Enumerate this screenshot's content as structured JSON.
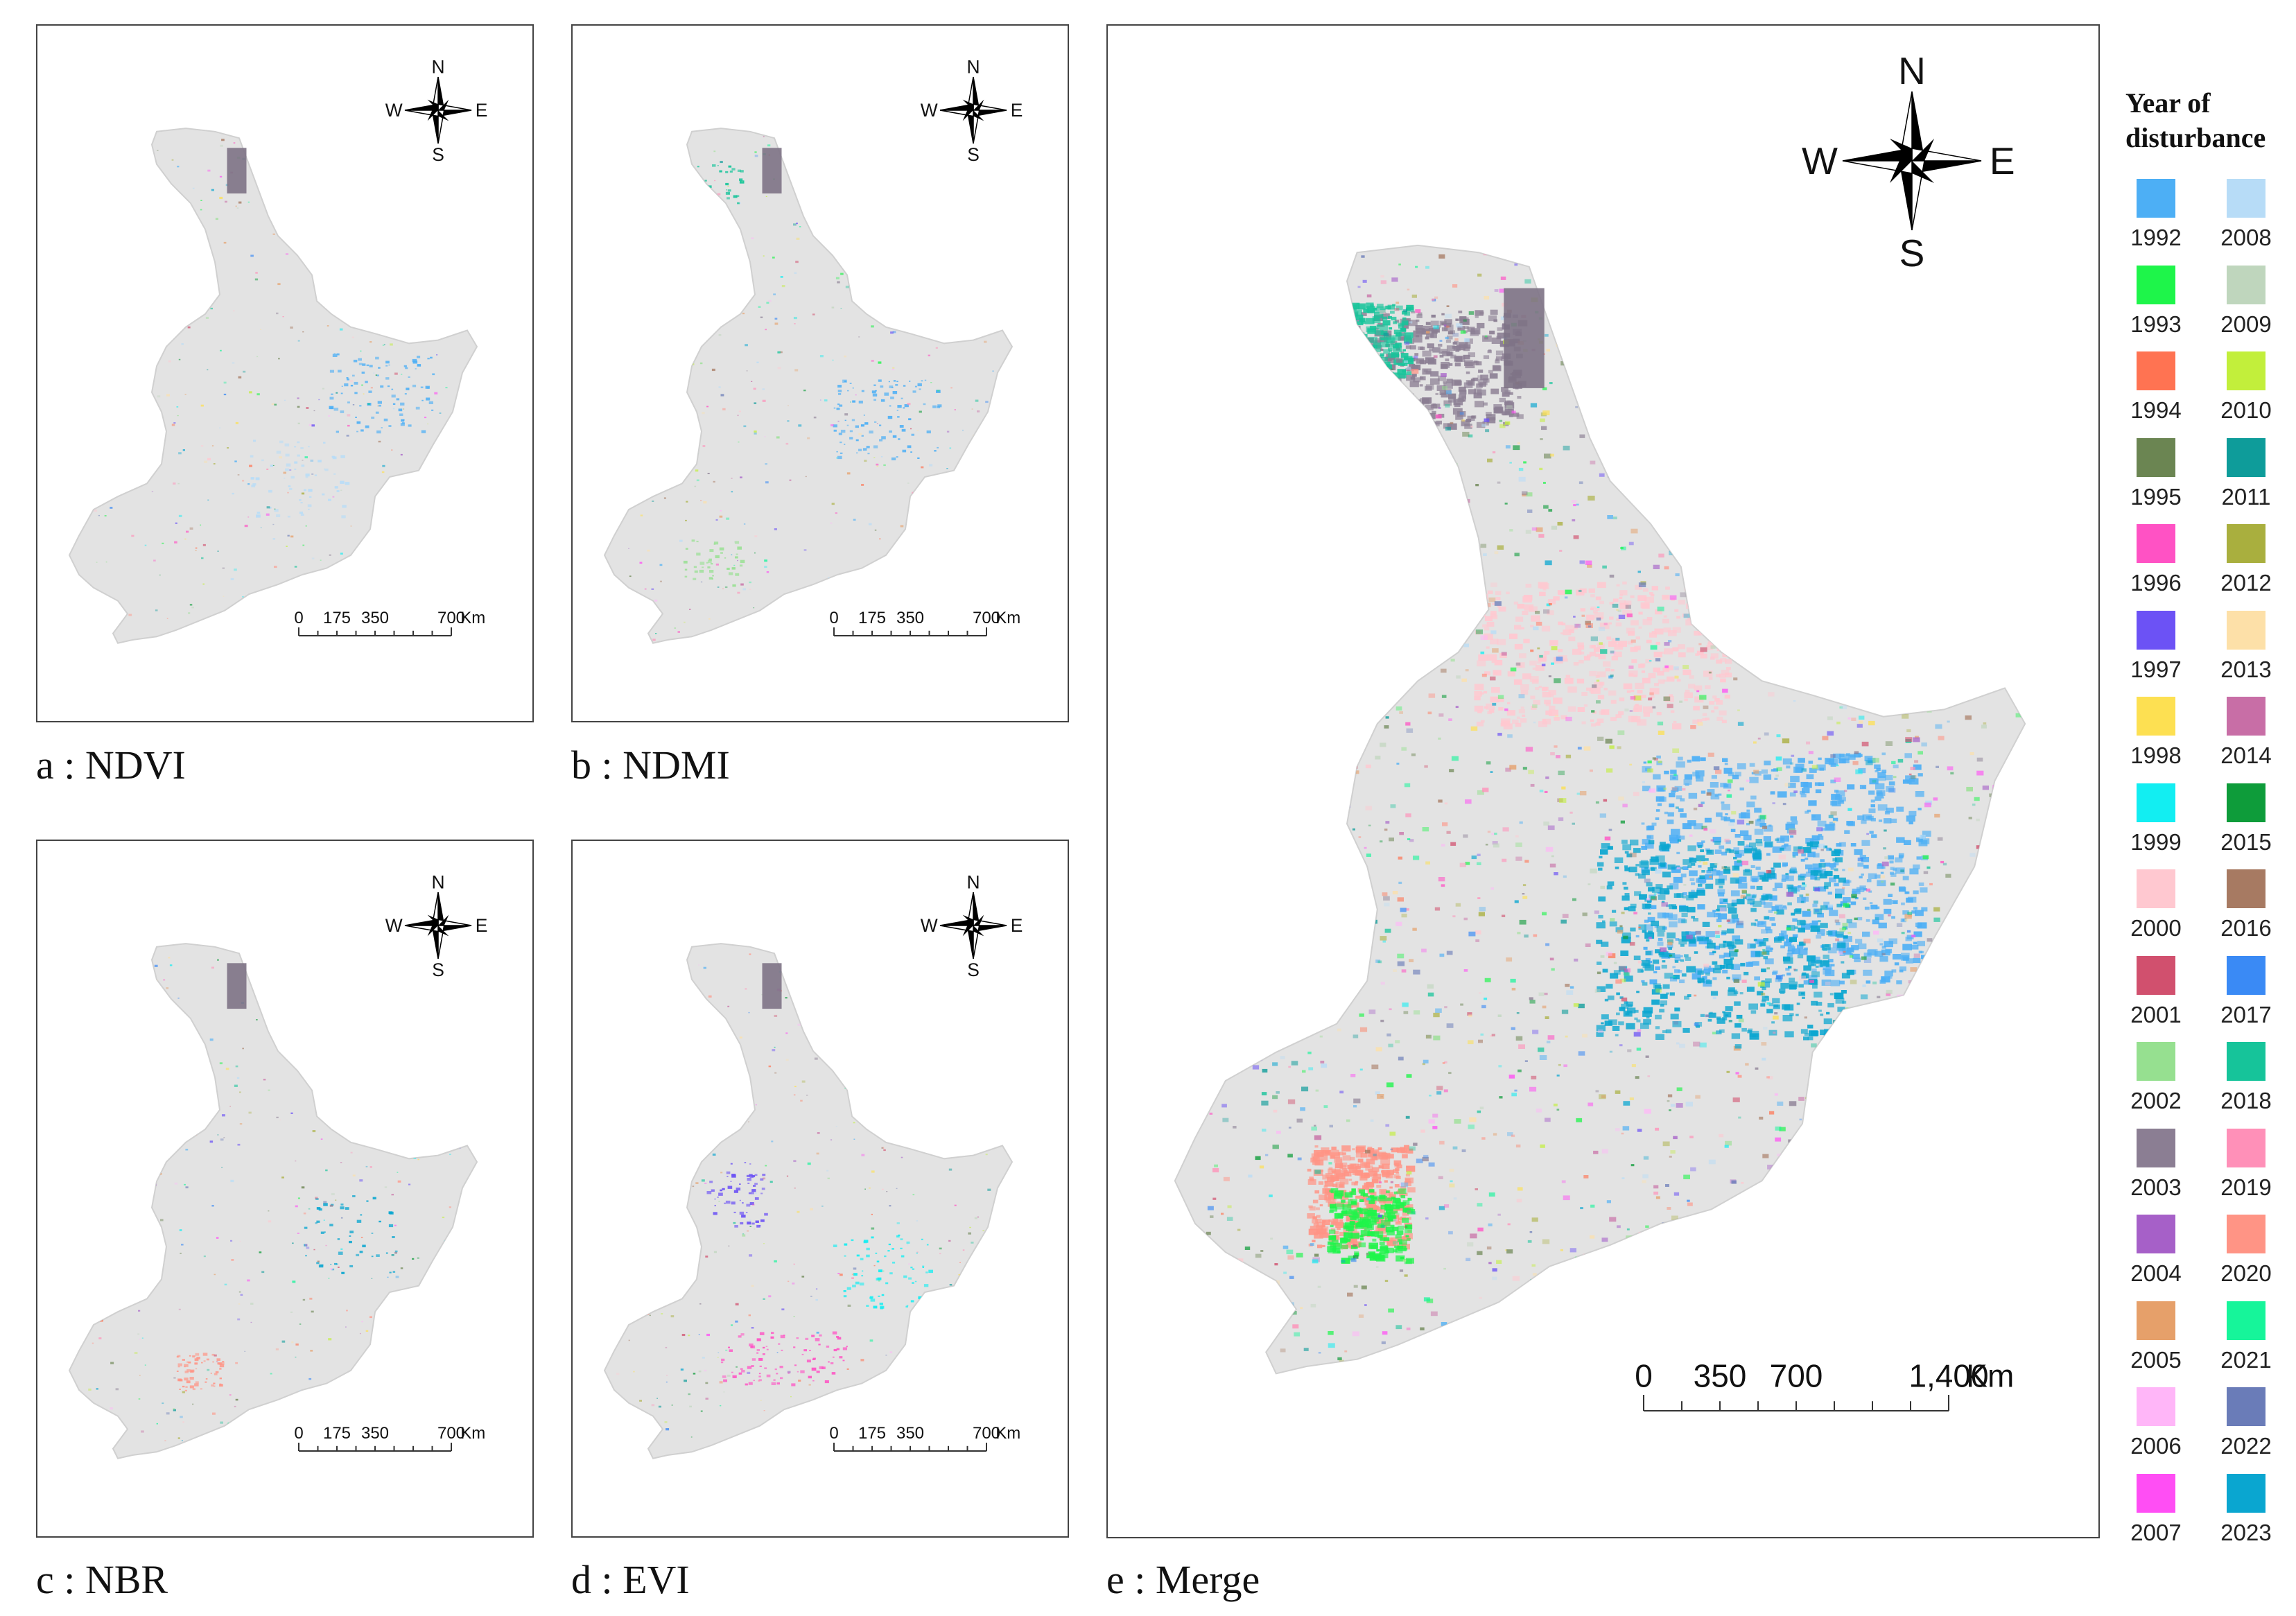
{
  "panels": [
    {
      "id": "a",
      "caption": "a : NDVI"
    },
    {
      "id": "b",
      "caption": "b : NDMI"
    },
    {
      "id": "c",
      "caption": "c : NBR"
    },
    {
      "id": "d",
      "caption": "d : EVI"
    },
    {
      "id": "e",
      "caption": "e : Merge"
    }
  ],
  "compass": {
    "n": "N",
    "s": "S",
    "e": "E",
    "w": "W"
  },
  "scale_small": {
    "ticks": [
      "0",
      "175",
      "350",
      "700"
    ],
    "unit": "Km"
  },
  "scale_large": {
    "ticks": [
      "0",
      "350",
      "700",
      "1,400"
    ],
    "unit": "Km"
  },
  "legend": {
    "title_line1": "Year of",
    "title_line2": "disturbance",
    "items": [
      {
        "year": "1992",
        "color": "#4daff5"
      },
      {
        "year": "2008",
        "color": "#b7dcf7"
      },
      {
        "year": "1993",
        "color": "#1ef54a"
      },
      {
        "year": "2009",
        "color": "#bfd6bd"
      },
      {
        "year": "1994",
        "color": "#ff7352"
      },
      {
        "year": "2010",
        "color": "#c2ef3b"
      },
      {
        "year": "1995",
        "color": "#6b8552"
      },
      {
        "year": "2011",
        "color": "#0e9c9a"
      },
      {
        "year": "1996",
        "color": "#ff52c4"
      },
      {
        "year": "2012",
        "color": "#a9af3e"
      },
      {
        "year": "1997",
        "color": "#6c52f5"
      },
      {
        "year": "2013",
        "color": "#fde0a8"
      },
      {
        "year": "1998",
        "color": "#fde052"
      },
      {
        "year": "2014",
        "color": "#c86ea6"
      },
      {
        "year": "1999",
        "color": "#12eef2"
      },
      {
        "year": "2015",
        "color": "#0e9c3a"
      },
      {
        "year": "2000",
        "color": "#ffc8d0"
      },
      {
        "year": "2016",
        "color": "#a77a62"
      },
      {
        "year": "2001",
        "color": "#d1506e"
      },
      {
        "year": "2017",
        "color": "#3a8af5"
      },
      {
        "year": "2002",
        "color": "#96e090"
      },
      {
        "year": "2018",
        "color": "#16c49a"
      },
      {
        "year": "2003",
        "color": "#8b7e93"
      },
      {
        "year": "2019",
        "color": "#ff90b8"
      },
      {
        "year": "2004",
        "color": "#a660c8"
      },
      {
        "year": "2020",
        "color": "#ff9485"
      },
      {
        "year": "2005",
        "color": "#e6a06a"
      },
      {
        "year": "2021",
        "color": "#16f59a"
      },
      {
        "year": "2006",
        "color": "#ffb6f8"
      },
      {
        "year": "2022",
        "color": "#6a7cb8"
      },
      {
        "year": "2007",
        "color": "#ff4ef4"
      },
      {
        "year": "2023",
        "color": "#0aa6d0"
      }
    ]
  }
}
